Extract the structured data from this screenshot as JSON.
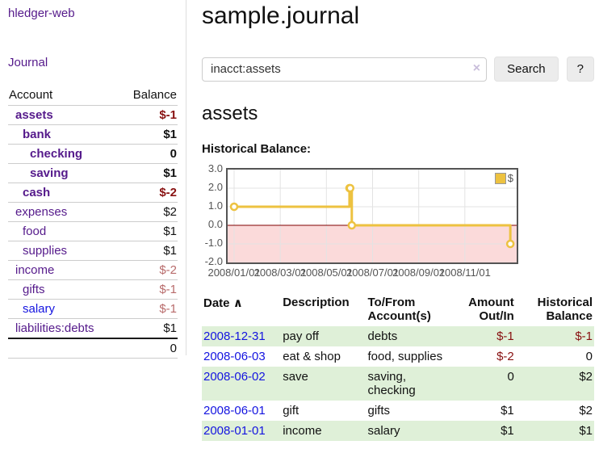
{
  "colors": {
    "link_visited": "#551a8b",
    "link_unvisited": "#1414e0",
    "negative": "#881111",
    "negative_soft": "#b86b6b",
    "row_stripe_green": "#dff0d8",
    "series_yellow": "#edc240",
    "chart_border": "#545454",
    "negative_region": "#fbdada",
    "zero_line": "#7f0000",
    "gridline": "#e3e3e3"
  },
  "sidebar": {
    "app_title": "hledger-web",
    "nav": {
      "journal": "Journal"
    },
    "accounts_table": {
      "headers": {
        "account": "Account",
        "balance": "Balance"
      },
      "rows": [
        {
          "name": "assets",
          "depth": 1,
          "balance": "$-1",
          "strong": true,
          "balance_tone": "negative",
          "link_tone": "visited"
        },
        {
          "name": "bank",
          "depth": 2,
          "balance": "$1",
          "strong": true,
          "balance_tone": "normal",
          "link_tone": "visited"
        },
        {
          "name": "checking",
          "depth": 3,
          "balance": "0",
          "strong": true,
          "balance_tone": "normal",
          "link_tone": "visited"
        },
        {
          "name": "saving",
          "depth": 3,
          "balance": "$1",
          "strong": true,
          "balance_tone": "normal",
          "link_tone": "visited"
        },
        {
          "name": "cash",
          "depth": 2,
          "balance": "$-2",
          "strong": true,
          "balance_tone": "negative",
          "link_tone": "visited"
        },
        {
          "name": "expenses",
          "depth": 1,
          "balance": "$2",
          "strong": false,
          "balance_tone": "normal",
          "link_tone": "visited"
        },
        {
          "name": "food",
          "depth": 2,
          "balance": "$1",
          "strong": false,
          "balance_tone": "normal",
          "link_tone": "visited"
        },
        {
          "name": "supplies",
          "depth": 2,
          "balance": "$1",
          "strong": false,
          "balance_tone": "normal",
          "link_tone": "visited"
        },
        {
          "name": "income",
          "depth": 1,
          "balance": "$-2",
          "strong": false,
          "balance_tone": "negative-soft",
          "link_tone": "visited"
        },
        {
          "name": "gifts",
          "depth": 2,
          "balance": "$-1",
          "strong": false,
          "balance_tone": "negative-soft",
          "link_tone": "visited"
        },
        {
          "name": "salary",
          "depth": 2,
          "balance": "$-1",
          "strong": false,
          "balance_tone": "negative-soft",
          "link_tone": "unvisited"
        },
        {
          "name": "liabilities:debts",
          "depth": 1,
          "balance": "$1",
          "strong": false,
          "balance_tone": "normal",
          "link_tone": "visited"
        }
      ],
      "total": "0"
    }
  },
  "main": {
    "title": "sample.journal",
    "search": {
      "value": "inacct:assets",
      "clear_icon": "×",
      "button": "Search",
      "help_button": "?"
    },
    "account_heading": "assets",
    "chart_label": "Historical Balance:"
  },
  "chart_data": {
    "type": "line",
    "steps": true,
    "title": "Historical Balance",
    "series": [
      {
        "name": "$",
        "color": "#edc240",
        "dates": [
          "2008-01-01",
          "2008-06-01",
          "2008-06-02",
          "2008-06-03",
          "2008-12-31"
        ],
        "x_months": [
          0,
          5.0,
          5.03,
          5.1,
          11.97
        ],
        "values": [
          1,
          2,
          2,
          0,
          -1
        ]
      }
    ],
    "ylim": [
      -2,
      3
    ],
    "yticks": [
      "3.0",
      "2.0",
      "1.0",
      "0.0",
      "-1.0",
      "-2.0"
    ],
    "ytick_values": [
      3,
      2,
      1,
      0,
      -1,
      -2
    ],
    "xtick_months": [
      0,
      2,
      4,
      6,
      8,
      10
    ],
    "xtick_labels": [
      "2008/01/01",
      "2008/03/01",
      "2008/05/01",
      "2008/07/01",
      "2008/09/01",
      "2008/11/01"
    ],
    "legend": {
      "label": "$",
      "position": "top-right"
    },
    "grid": true,
    "negative_region": true
  },
  "register_table": {
    "headers": {
      "date": "Date",
      "sort_icon": "∧",
      "description": "Description",
      "tofrom": "To/From Account(s)",
      "amount": "Amount Out/In",
      "balance": "Historical Balance"
    },
    "rows": [
      {
        "date": "2008-12-31",
        "description": "pay off",
        "accounts": "debts",
        "amount": "$-1",
        "balance": "$-1",
        "amount_tone": "negative",
        "balance_tone": "negative"
      },
      {
        "date": "2008-06-03",
        "description": "eat & shop",
        "accounts": "food, supplies",
        "amount": "$-2",
        "balance": "0",
        "amount_tone": "negative",
        "balance_tone": "normal"
      },
      {
        "date": "2008-06-02",
        "description": "save",
        "accounts": "saving, checking",
        "amount": "0",
        "balance": "$2",
        "amount_tone": "normal",
        "balance_tone": "normal"
      },
      {
        "date": "2008-06-01",
        "description": "gift",
        "accounts": "gifts",
        "amount": "$1",
        "balance": "$2",
        "amount_tone": "normal",
        "balance_tone": "normal"
      },
      {
        "date": "2008-01-01",
        "description": "income",
        "accounts": "salary",
        "amount": "$1",
        "balance": "$1",
        "amount_tone": "normal",
        "balance_tone": "normal"
      }
    ]
  }
}
